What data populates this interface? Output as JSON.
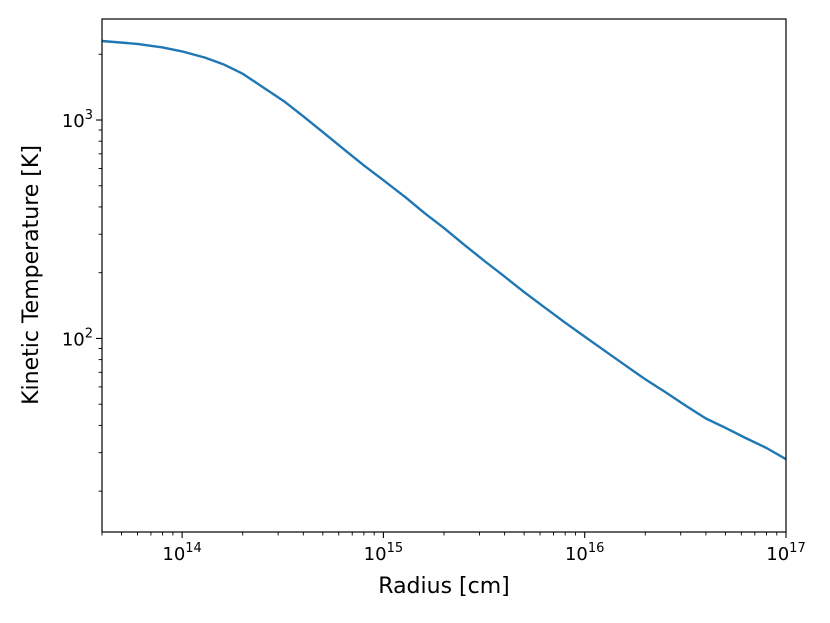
{
  "chart_data": {
    "type": "line",
    "xlabel": "Radius [cm]",
    "ylabel": "Kinetic Temperature [K]",
    "xscale": "log",
    "yscale": "log",
    "xlim": [
      40000000000000.0,
      1e+17
    ],
    "ylim": [
      13,
      2900
    ],
    "grid": false,
    "line_color": "#1f77b4",
    "x_ticks": [
      {
        "value": 100000000000000.0,
        "base": "10",
        "exp": "14"
      },
      {
        "value": 1000000000000000.0,
        "base": "10",
        "exp": "15"
      },
      {
        "value": 1e+16,
        "base": "10",
        "exp": "16"
      },
      {
        "value": 1e+17,
        "base": "10",
        "exp": "17"
      }
    ],
    "y_ticks": [
      {
        "value": 100,
        "base": "10",
        "exp": "2"
      },
      {
        "value": 1000,
        "base": "10",
        "exp": "3"
      }
    ],
    "series": [
      {
        "x": [
          40000000000000.0,
          60000000000000.0,
          80000000000000.0,
          100000000000000.0,
          130000000000000.0,
          160000000000000.0,
          200000000000000.0,
          250000000000000.0,
          320000000000000.0,
          400000000000000.0,
          500000000000000.0,
          630000000000000.0,
          800000000000000.0,
          1000000000000000.0,
          1300000000000000.0,
          1600000000000000.0,
          2000000000000000.0,
          2500000000000000.0,
          3200000000000000.0,
          4000000000000000.0,
          5000000000000000.0,
          6300000000000000.0,
          8000000000000000.0,
          1e+16,
          1.3e+16,
          1.6e+16,
          2e+16,
          2.5e+16,
          3.2e+16,
          4e+16,
          5e+16,
          6.3e+16,
          8e+16,
          1e+17
        ],
        "y": [
          2300,
          2230,
          2150,
          2060,
          1930,
          1800,
          1630,
          1420,
          1220,
          1040,
          880,
          740,
          620,
          530,
          440,
          375,
          320,
          270,
          225,
          192,
          163,
          139,
          118,
          102,
          86,
          75,
          65,
          57,
          49,
          43,
          39,
          35,
          31.5,
          28
        ]
      }
    ]
  }
}
